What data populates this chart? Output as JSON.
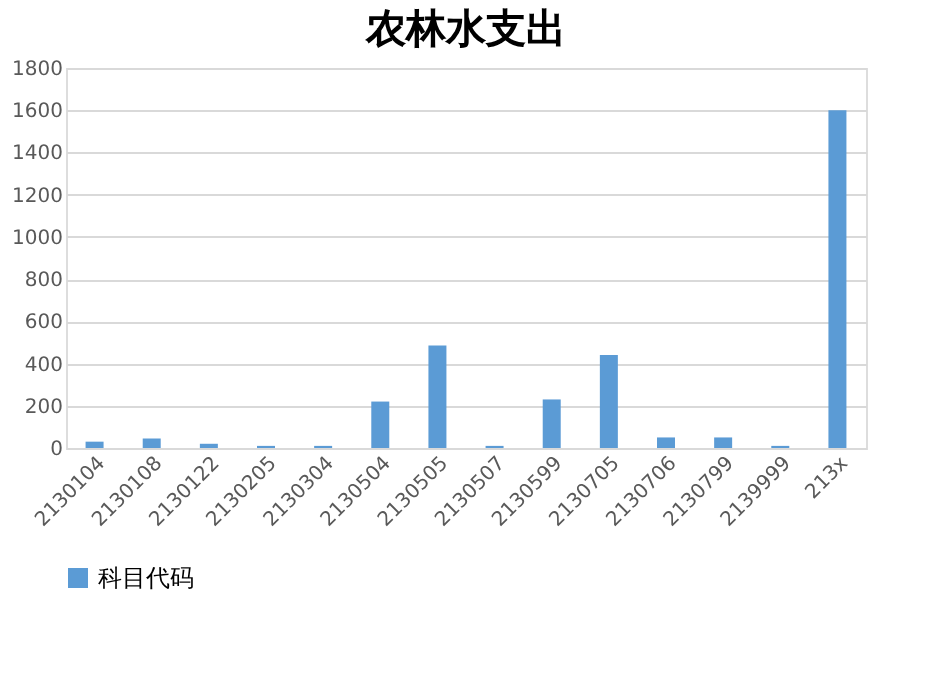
{
  "chart_data": {
    "type": "bar",
    "title": "农林水支出",
    "categories": [
      "2130104",
      "2130108",
      "2130122",
      "2130205",
      "2130304",
      "2130504",
      "2130505",
      "2130507",
      "2130599",
      "2130705",
      "2130706",
      "2130799",
      "2139999",
      "213x"
    ],
    "series": [
      {
        "name": "科目代码",
        "color": "#5b9bd5",
        "values": [
          30,
          45,
          20,
          10,
          10,
          220,
          485,
          10,
          230,
          440,
          50,
          50,
          10,
          1600
        ]
      }
    ],
    "ylim": [
      0,
      1800
    ],
    "yticks": [
      0,
      200,
      400,
      600,
      800,
      1000,
      1200,
      1400,
      1600,
      1800
    ],
    "grid": "y",
    "legend": "bottom"
  }
}
